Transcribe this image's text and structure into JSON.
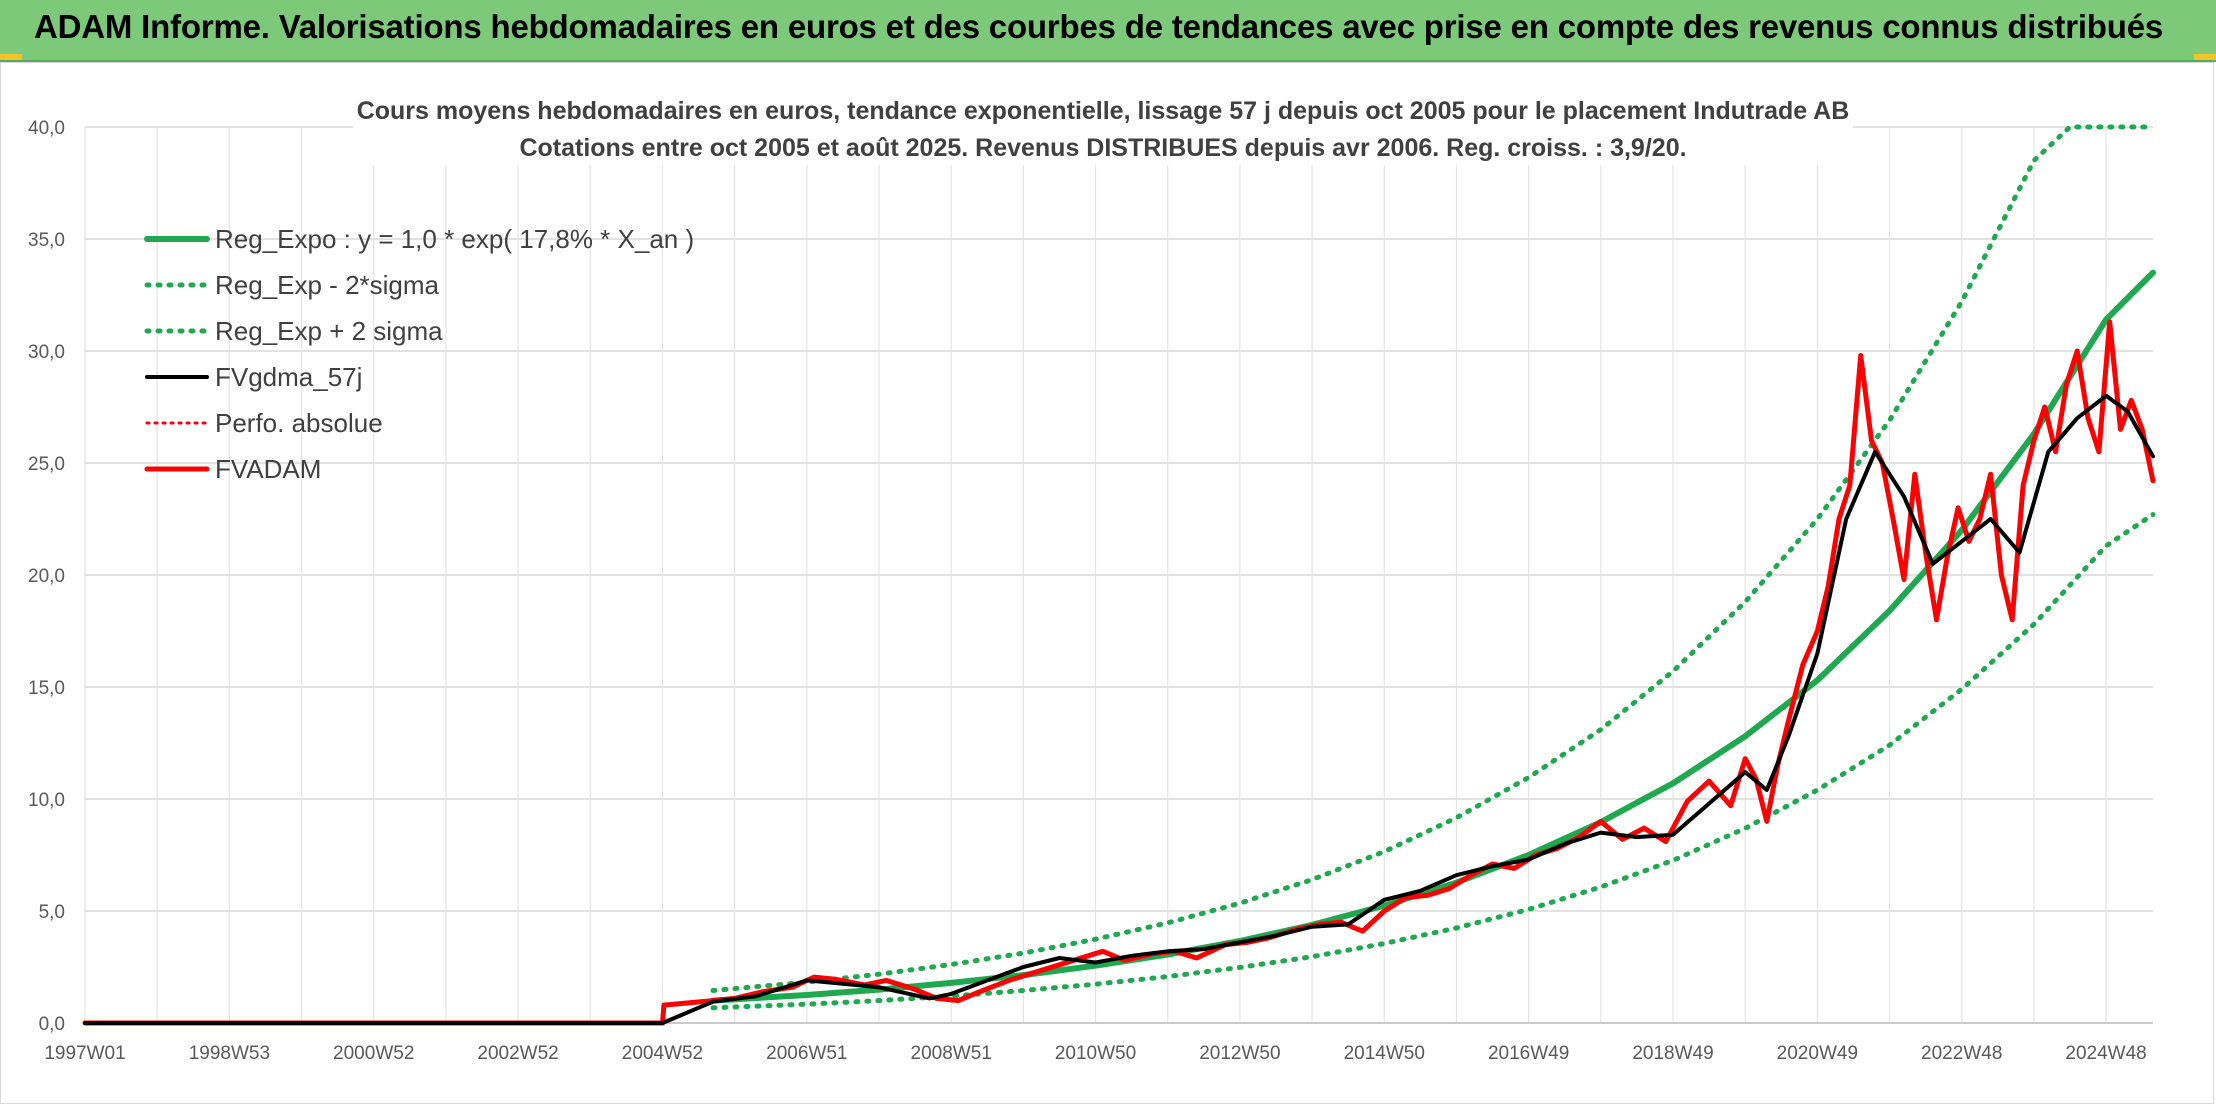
{
  "header": {
    "title": "ADAM Informe. Valorisations hebdomadaires en euros et des courbes de tendances avec prise en compte des revenus connus distribués"
  },
  "colors": {
    "header_bg": "#7dc97a",
    "trend_green": "#1fa84f",
    "smooth_black": "#000000",
    "fvadam_red": "#ff0000"
  },
  "chart_data": {
    "type": "line",
    "title": "Cours moyens hebdomadaires en euros, tendance exponentielle, lissage 57 j depuis oct 2005 pour le placement Indutrade AB",
    "subtitle": "Cotations entre oct 2005 et août 2025. Revenus DISTRIBUES depuis avr 2006. Reg. croiss. : 3,9/20.",
    "xlabel": "",
    "ylabel": "",
    "x_range": [
      1997.0,
      2025.65
    ],
    "ylim": [
      0,
      40
    ],
    "y_ticks": [
      "0,0",
      "5,0",
      "10,0",
      "15,0",
      "20,0",
      "25,0",
      "30,0",
      "35,0",
      "40,0"
    ],
    "x_tick_labels": [
      {
        "label": "1997W01",
        "x": 1997.0
      },
      {
        "label": "1998W53",
        "x": 1999.0
      },
      {
        "label": "2000W52",
        "x": 2001.0
      },
      {
        "label": "2002W52",
        "x": 2003.0
      },
      {
        "label": "2004W52",
        "x": 2005.0
      },
      {
        "label": "2006W51",
        "x": 2007.0
      },
      {
        "label": "2008W51",
        "x": 2009.0
      },
      {
        "label": "2010W50",
        "x": 2011.0
      },
      {
        "label": "2012W50",
        "x": 2013.0
      },
      {
        "label": "2014W50",
        "x": 2015.0
      },
      {
        "label": "2016W49",
        "x": 2017.0
      },
      {
        "label": "2018W49",
        "x": 2019.0
      },
      {
        "label": "2020W49",
        "x": 2021.0
      },
      {
        "label": "2022W48",
        "x": 2023.0
      },
      {
        "label": "2024W48",
        "x": 2025.0
      }
    ],
    "grid": "on",
    "legend_position": "top-left",
    "series": [
      {
        "name": "Reg_Expo : y = 1,0 * exp( 17,8% *  X_an )",
        "style": "solid",
        "color": "#1fa84f",
        "x": [
          2005.7,
          2007,
          2008,
          2009,
          2010,
          2011,
          2012,
          2013,
          2014,
          2015,
          2016,
          2017,
          2018,
          2019,
          2020,
          2021,
          2022,
          2023,
          2024,
          2025,
          2025.65
        ],
        "y": [
          1.0,
          1.25,
          1.49,
          1.79,
          2.14,
          2.56,
          3.06,
          3.66,
          4.38,
          5.24,
          6.27,
          7.5,
          8.97,
          10.7,
          12.8,
          15.3,
          18.4,
          22.0,
          26.3,
          31.4,
          33.5
        ]
      },
      {
        "name": "Reg_Exp - 2*sigma",
        "style": "dotted",
        "color": "#1fa84f",
        "x": [
          2005.7,
          2007,
          2008,
          2009,
          2010,
          2011,
          2012,
          2013,
          2014,
          2015,
          2016,
          2017,
          2018,
          2019,
          2020,
          2021,
          2022,
          2023,
          2024,
          2025,
          2025.65
        ],
        "y": [
          0.68,
          0.84,
          1.0,
          1.2,
          1.45,
          1.73,
          2.07,
          2.48,
          2.96,
          3.55,
          4.24,
          5.07,
          6.07,
          7.26,
          8.69,
          10.4,
          12.4,
          14.9,
          17.8,
          21.3,
          22.7
        ]
      },
      {
        "name": "Reg_Exp + 2 sigma",
        "style": "dotted",
        "color": "#1fa84f",
        "x": [
          2005.7,
          2007,
          2008,
          2009,
          2010,
          2011,
          2012,
          2013,
          2014,
          2015,
          2016,
          2017,
          2018,
          2019,
          2020,
          2021,
          2022,
          2023,
          2024,
          2024.5,
          2025.65
        ],
        "y": [
          1.45,
          1.82,
          2.18,
          2.61,
          3.12,
          3.74,
          4.47,
          5.35,
          6.4,
          7.65,
          9.16,
          10.96,
          13.1,
          15.7,
          18.8,
          22.5,
          26.9,
          32.2,
          38.5,
          40.0,
          40.0
        ]
      },
      {
        "name": "FVgdma_57j",
        "style": "solid",
        "color": "#000000",
        "x": [
          1997.0,
          2005.0,
          2005.7,
          2006.3,
          2007.0,
          2007.5,
          2008.0,
          2008.7,
          2009.0,
          2009.5,
          2010.0,
          2010.5,
          2011.0,
          2011.5,
          2012.0,
          2012.5,
          2013.0,
          2013.5,
          2014.0,
          2014.5,
          2015.0,
          2015.5,
          2016.0,
          2016.5,
          2017.0,
          2017.5,
          2018.0,
          2018.5,
          2019.0,
          2019.5,
          2020.0,
          2020.3,
          2020.6,
          2021.0,
          2021.4,
          2021.8,
          2022.2,
          2022.6,
          2023.0,
          2023.4,
          2023.8,
          2024.2,
          2024.6,
          2025.0,
          2025.3,
          2025.65
        ],
        "y": [
          0.0,
          0.0,
          0.95,
          1.2,
          1.9,
          1.75,
          1.6,
          1.1,
          1.3,
          1.9,
          2.5,
          2.9,
          2.7,
          3.0,
          3.2,
          3.3,
          3.6,
          3.9,
          4.3,
          4.4,
          5.5,
          5.9,
          6.6,
          7.0,
          7.3,
          8.0,
          8.5,
          8.3,
          8.4,
          9.8,
          11.2,
          10.4,
          12.8,
          16.5,
          22.5,
          25.5,
          23.5,
          20.5,
          21.5,
          22.5,
          21.0,
          25.5,
          27.0,
          28.0,
          27.3,
          25.3
        ]
      },
      {
        "name": "Perfo. absolue",
        "style": "dotted",
        "color": "#ff0000",
        "x": [
          1997.0,
          2005.0,
          2005.7,
          2006.3,
          2007.0,
          2007.5,
          2008.0,
          2008.7,
          2009.0,
          2009.5,
          2010.0,
          2010.5,
          2011.0,
          2011.5,
          2012.0,
          2012.5,
          2013.0,
          2013.5,
          2014.0,
          2014.5,
          2015.0,
          2015.5,
          2016.0,
          2016.5,
          2017.0,
          2017.5,
          2018.0,
          2018.5,
          2019.0,
          2019.5,
          2020.0,
          2020.3,
          2020.6,
          2021.0,
          2021.4,
          2021.8,
          2022.2,
          2022.6,
          2023.0,
          2023.4,
          2023.8,
          2024.2,
          2024.6,
          2025.0,
          2025.3,
          2025.65
        ],
        "y": [
          0.0,
          0.0,
          0.95,
          1.2,
          1.9,
          1.75,
          1.6,
          1.1,
          1.3,
          1.9,
          2.5,
          2.9,
          2.7,
          3.0,
          3.2,
          3.3,
          3.6,
          3.9,
          4.3,
          4.4,
          5.5,
          5.9,
          6.6,
          7.0,
          7.3,
          8.0,
          8.5,
          8.3,
          8.4,
          9.8,
          11.2,
          10.4,
          12.8,
          16.5,
          22.5,
          25.5,
          23.5,
          20.5,
          21.5,
          22.5,
          21.0,
          25.5,
          27.0,
          28.0,
          27.3,
          25.3
        ]
      },
      {
        "name": "FVADAM",
        "style": "solid",
        "color": "#ff0000",
        "x": [
          1997.0,
          2005.0,
          2005.02,
          2005.7,
          2006.0,
          2006.4,
          2006.8,
          2007.1,
          2007.4,
          2007.8,
          2008.1,
          2008.5,
          2008.8,
          2009.1,
          2009.4,
          2009.8,
          2010.1,
          2010.5,
          2010.8,
          2011.1,
          2011.4,
          2011.8,
          2012.1,
          2012.4,
          2012.8,
          2013.1,
          2013.4,
          2013.8,
          2014.1,
          2014.4,
          2014.7,
          2015.0,
          2015.3,
          2015.6,
          2015.9,
          2016.2,
          2016.5,
          2016.8,
          2017.1,
          2017.4,
          2017.7,
          2018.0,
          2018.3,
          2018.6,
          2018.9,
          2019.2,
          2019.5,
          2019.8,
          2020.0,
          2020.15,
          2020.3,
          2020.45,
          2020.6,
          2020.8,
          2021.0,
          2021.15,
          2021.3,
          2021.45,
          2021.6,
          2021.75,
          2021.9,
          2022.05,
          2022.2,
          2022.35,
          2022.5,
          2022.65,
          2022.8,
          2022.95,
          2023.1,
          2023.25,
          2023.4,
          2023.55,
          2023.7,
          2023.85,
          2024.0,
          2024.15,
          2024.3,
          2024.45,
          2024.6,
          2024.75,
          2024.9,
          2025.05,
          2025.2,
          2025.35,
          2025.5,
          2025.65
        ],
        "y": [
          0.0,
          0.0,
          0.8,
          1.0,
          1.1,
          1.4,
          1.6,
          2.05,
          1.95,
          1.7,
          1.9,
          1.5,
          1.1,
          1.0,
          1.4,
          1.9,
          2.2,
          2.6,
          2.9,
          3.2,
          2.8,
          3.1,
          3.2,
          2.9,
          3.5,
          3.6,
          3.8,
          4.2,
          4.4,
          4.5,
          4.1,
          5.0,
          5.6,
          5.7,
          6.0,
          6.6,
          7.1,
          6.9,
          7.5,
          7.8,
          8.3,
          9.0,
          8.2,
          8.7,
          8.1,
          9.9,
          10.8,
          9.7,
          11.8,
          10.9,
          9.0,
          11.5,
          13.5,
          16.0,
          17.5,
          19.5,
          22.5,
          24.0,
          29.8,
          26.0,
          25.0,
          22.5,
          19.8,
          24.5,
          21.0,
          18.0,
          20.8,
          23.0,
          21.5,
          22.5,
          24.5,
          20.0,
          18.0,
          24.0,
          26.0,
          27.5,
          25.5,
          28.5,
          30.0,
          27.0,
          25.5,
          31.3,
          26.5,
          27.8,
          26.5,
          24.2
        ]
      }
    ]
  }
}
